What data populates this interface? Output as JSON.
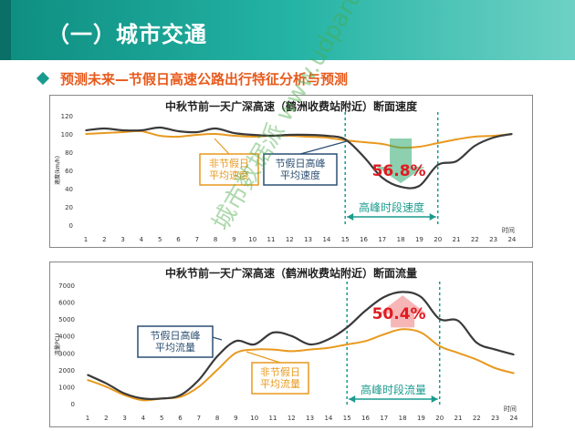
{
  "header": {
    "title": "（一）城市交通"
  },
  "subtitle": "预测未来—节假日高速公路出行特征分析与预测",
  "watermark": "城市数据派 www.udparty.com",
  "colors": {
    "holiday": "#3a3a3a",
    "normal": "#e8991e",
    "peak": "#1a9b8d",
    "drop": "#e01b22",
    "header": "#1a9b8d",
    "subtitle": "#e85a1c"
  },
  "chart_data": [
    {
      "type": "line",
      "title": "中秋节前一天广深高速（鹤洲收费站附近）断面速度",
      "ylabel": "速度(km/h)",
      "xlabel": "时间",
      "ylim": [
        0,
        120
      ],
      "yticks": [
        0,
        20,
        40,
        60,
        80,
        100,
        120
      ],
      "x": [
        1,
        2,
        3,
        4,
        5,
        6,
        7,
        8,
        9,
        10,
        11,
        12,
        13,
        14,
        15,
        16,
        17,
        18,
        19,
        20,
        21,
        22,
        23,
        24
      ],
      "series": [
        {
          "name": "节假日高峰平均速度",
          "values": [
            104,
            106,
            104,
            104,
            107,
            103,
            102,
            106,
            101,
            99,
            98,
            99,
            99,
            98,
            94,
            75,
            52,
            42,
            43,
            66,
            70,
            87,
            96,
            100
          ]
        },
        {
          "name": "非节假日平均速度",
          "values": [
            100,
            101,
            102,
            103,
            98,
            97,
            99,
            100,
            98,
            97,
            98,
            98,
            97,
            96,
            93,
            91,
            89,
            85,
            86,
            90,
            94,
            97,
            98,
            100
          ]
        }
      ],
      "legend_labels": {
        "normal": [
          "非节假日",
          "平均速度"
        ],
        "holiday": [
          "节假日高峰",
          "平均速度"
        ]
      },
      "annotation": "56.8%",
      "peak_label": "高峰时段速度",
      "peak_range": [
        15,
        20
      ]
    },
    {
      "type": "line",
      "title": "中秋节前一天广深高速（鹤洲收费站附近）断面流量",
      "ylabel": "流量PCU",
      "xlabel": "时间",
      "ylim": [
        0,
        7000
      ],
      "yticks": [
        0,
        1000,
        2000,
        3000,
        4000,
        5000,
        6000,
        7000
      ],
      "x": [
        1,
        2,
        3,
        4,
        5,
        6,
        7,
        8,
        9,
        10,
        11,
        12,
        13,
        14,
        15,
        16,
        17,
        18,
        19,
        20,
        21,
        22,
        23,
        24
      ],
      "series": [
        {
          "name": "节假日高峰平均流量",
          "values": [
            1700,
            1200,
            600,
            300,
            300,
            500,
            1400,
            2800,
            3700,
            3500,
            4200,
            4000,
            3500,
            3800,
            4500,
            5500,
            6300,
            6600,
            6300,
            5000,
            4900,
            3600,
            3200,
            2900
          ]
        },
        {
          "name": "非节假日平均流量",
          "values": [
            1400,
            1000,
            500,
            200,
            300,
            400,
            1000,
            2000,
            3000,
            3200,
            3200,
            3100,
            3200,
            3300,
            3500,
            3700,
            4100,
            4400,
            4200,
            3400,
            3000,
            2600,
            2100,
            1800
          ]
        }
      ],
      "legend_labels": {
        "holiday": [
          "节假日高峰",
          "平均流量"
        ],
        "normal": [
          "非节假日",
          "平均流量"
        ]
      },
      "annotation": "50.4%",
      "peak_label": "高峰时段流量",
      "peak_range": [
        15,
        20
      ]
    }
  ]
}
